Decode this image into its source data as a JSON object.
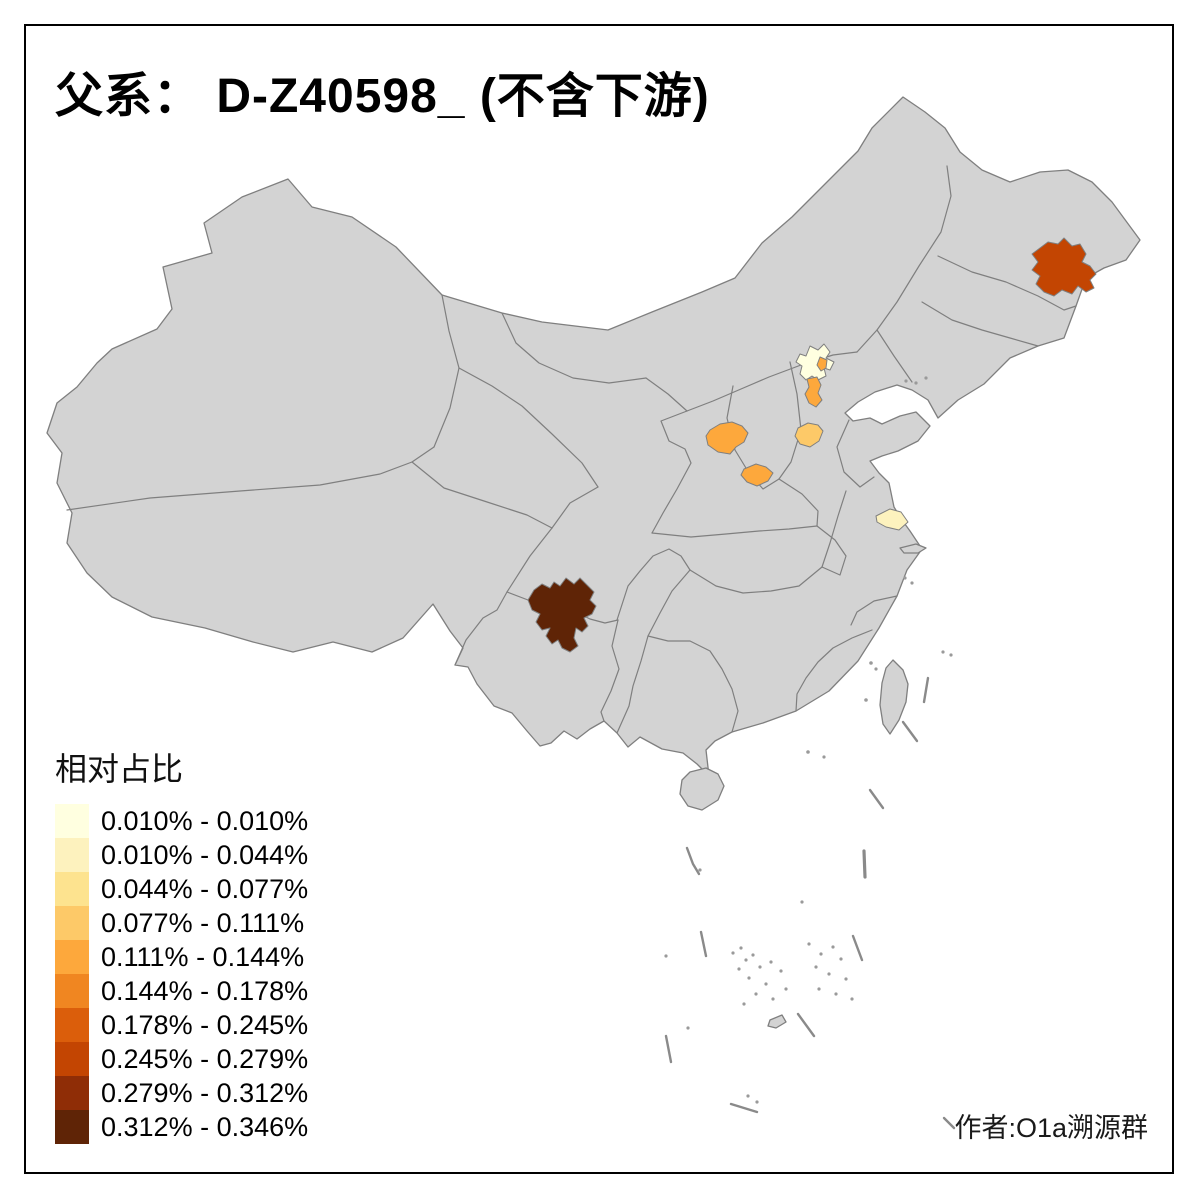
{
  "title": "父系： D-Z40598_ (不含下游)",
  "author": "作者:O1a溯源群",
  "legend": {
    "title": "相对占比",
    "bins": [
      {
        "range": "0.010% - 0.010%",
        "color": "#FFFFE0"
      },
      {
        "range": "0.010% - 0.044%",
        "color": "#FDF2BE"
      },
      {
        "range": "0.044% - 0.077%",
        "color": "#FDE38F"
      },
      {
        "range": "0.077% - 0.111%",
        "color": "#FDC968"
      },
      {
        "range": "0.111% - 0.144%",
        "color": "#FDA83C"
      },
      {
        "range": "0.144% - 0.178%",
        "color": "#F08621"
      },
      {
        "range": "0.178% - 0.245%",
        "color": "#DB5E0B"
      },
      {
        "range": "0.245% - 0.279%",
        "color": "#C34502"
      },
      {
        "range": "0.279% - 0.312%",
        "color": "#8F2D06"
      },
      {
        "range": "0.312% - 0.346%",
        "color": "#5F2406"
      }
    ]
  },
  "map": {
    "base_fill": "#D3D3D3",
    "border_color": "#7F7F7F",
    "sea_color": "#FFFFFF",
    "regions": [
      {
        "name": "northeast-prefecture",
        "bin": 7
      },
      {
        "name": "beijing",
        "bin": 0
      },
      {
        "name": "langfang-north-exclave",
        "bin": 4
      },
      {
        "name": "langfang",
        "bin": 4
      },
      {
        "name": "shanxi-west-prefecture",
        "bin": 4
      },
      {
        "name": "shanxi-southeast-prefecture",
        "bin": 3
      },
      {
        "name": "shanxi-southwest-prefecture",
        "bin": 4
      },
      {
        "name": "jiangsu-coastal-prefecture",
        "bin": 1
      },
      {
        "name": "sichuan-southwest-prefecture",
        "bin": 9
      }
    ]
  }
}
